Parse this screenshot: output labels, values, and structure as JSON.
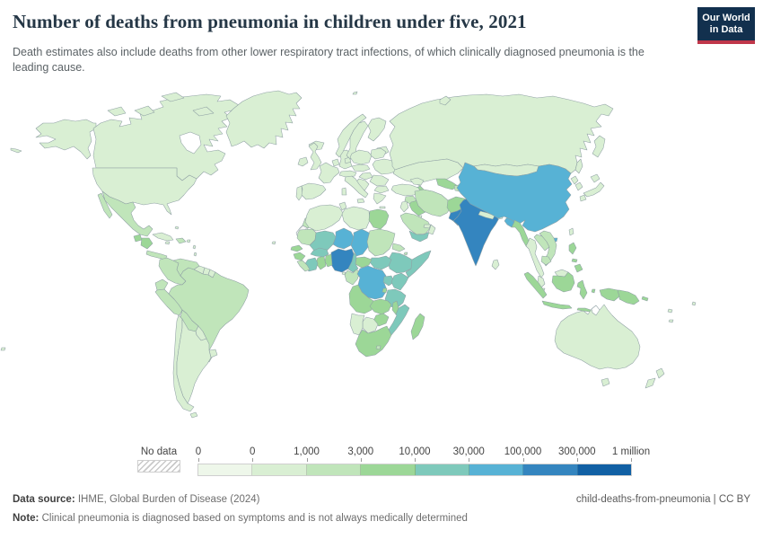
{
  "header": {
    "title": "Number of deaths from pneumonia in children under five, 2021",
    "subtitle": "Death estimates also include deaths from other lower respiratory tract infections, of which clinically diagnosed pneumonia is the leading cause.",
    "logo": {
      "line1": "Our World",
      "line2": "in Data",
      "bg_color": "#12304e",
      "accent_color": "#c0374a"
    }
  },
  "legend": {
    "no_data_label": "No data"
  },
  "footer": {
    "source_label": "Data source:",
    "source_text": " IHME, Global Burden of Disease (2024)",
    "note_label": "Note:",
    "note_text": " Clinical pneumonia is diagnosed based on symptoms and is not always medically determined",
    "link_text": "child-deaths-from-pneumonia | CC BY"
  },
  "chart_data": {
    "type": "heatmap",
    "variant": "choropleth-world-map",
    "title": "Number of deaths from pneumonia in children under five, 2021",
    "year": "2021",
    "unit": "deaths",
    "legend_position": "bottom",
    "bin_edge_labels": [
      "0",
      "0",
      "1,000",
      "3,000",
      "10,000",
      "30,000",
      "100,000",
      "300,000",
      "1 million"
    ],
    "bin_colors": [
      "#eef7ea",
      "#d9efd3",
      "#c0e5ba",
      "#9cd797",
      "#7ec9bb",
      "#57b2d5",
      "#3485bf",
      "#1160a4"
    ],
    "no_data_value": -1,
    "countries": {
      "canada": 1,
      "usa": 1,
      "greenland": 1,
      "mexico": 2,
      "guatemala": 3,
      "honduras-nicaragua": 3,
      "costa-rica-panama": 2,
      "cuba": 1,
      "hispaniola": 2,
      "jamaica": 1,
      "puerto-rico": 1,
      "bahamas": 1,
      "lesser-antilles": 1,
      "colombia": 2,
      "venezuela": 2,
      "guyana": 1,
      "suriname": 1,
      "french-guiana": 1,
      "ecuador": 2,
      "peru": 2,
      "brazil": 2,
      "bolivia": 2,
      "paraguay": 1,
      "uruguay": 1,
      "chile": 1,
      "argentina": 1,
      "iceland": 1,
      "ireland": 1,
      "uk": 1,
      "portugal": 1,
      "spain": 1,
      "france": 1,
      "benelux": 1,
      "germany": 1,
      "denmark": 1,
      "norway": 1,
      "sweden": 1,
      "finland": 1,
      "baltics": 1,
      "poland": 1,
      "belarus": 1,
      "ukraine": 1,
      "czech-slovakia": 1,
      "austria-switzerland": 1,
      "hungary": 1,
      "romania": 1,
      "balkans": 1,
      "bulgaria": 1,
      "greece": 1,
      "italy": 1,
      "russia": 1,
      "kazakhstan": 1,
      "mongolia": 1,
      "turkey": 1,
      "cyprus": 1,
      "caucasus": 1,
      "syria": 2,
      "israel-jordan": 1,
      "iraq": 3,
      "kuwait": 1,
      "saudi-arabia": 2,
      "yemen": 4,
      "oman": 1,
      "uae": 1,
      "iran": 2,
      "turkmenistan": 3,
      "uzbekistan": 3,
      "kyrgyzstan-tajikistan": 2,
      "afghanistan": 3,
      "pakistan": 6,
      "india": 6,
      "nepal": 1,
      "bhutan": 1,
      "bangladesh": 5,
      "sri-lanka": 1,
      "myanmar": 3,
      "thailand": 1,
      "laos": 2,
      "vietnam": 2,
      "cambodia": 2,
      "malaysia": 1,
      "singapore": 1,
      "indonesia": 3,
      "papua-new-guinea": 3,
      "philippines": 3,
      "taiwan": 1,
      "china": 5,
      "north-korea": 1,
      "south-korea": 1,
      "japan": 1,
      "australia": 1,
      "new-zealand": 1,
      "pacific-islands": 1,
      "morocco": 2,
      "western-sahara": -1,
      "algeria": 1,
      "tunisia": 1,
      "libya": 1,
      "egypt": 3,
      "mauritania": 2,
      "mali": 4,
      "niger": 5,
      "chad": 5,
      "sudan": 2,
      "south-sudan": 4,
      "eritrea": 2,
      "djibouti": 2,
      "ethiopia": 4,
      "somalia": 4,
      "senegal": 3,
      "guinea": 3,
      "sierra-leone-liberia": 2,
      "ivory-coast": 4,
      "ghana": 3,
      "togo-benin": 3,
      "burkina-faso": 4,
      "nigeria": 6,
      "cameroon": 4,
      "central-african-republic": 3,
      "gabon-congo": 2,
      "equatorial-guinea": 1,
      "drc": 5,
      "uganda": 4,
      "kenya": 4,
      "rwanda-burundi": 3,
      "tanzania": 4,
      "angola": 3,
      "zambia": 3,
      "malawi": 3,
      "mozambique": 4,
      "zimbabwe": 3,
      "botswana": 1,
      "namibia": 1,
      "south-africa": 3,
      "lesotho": 2,
      "madagascar": 3,
      "cape-verde": 1
    }
  }
}
